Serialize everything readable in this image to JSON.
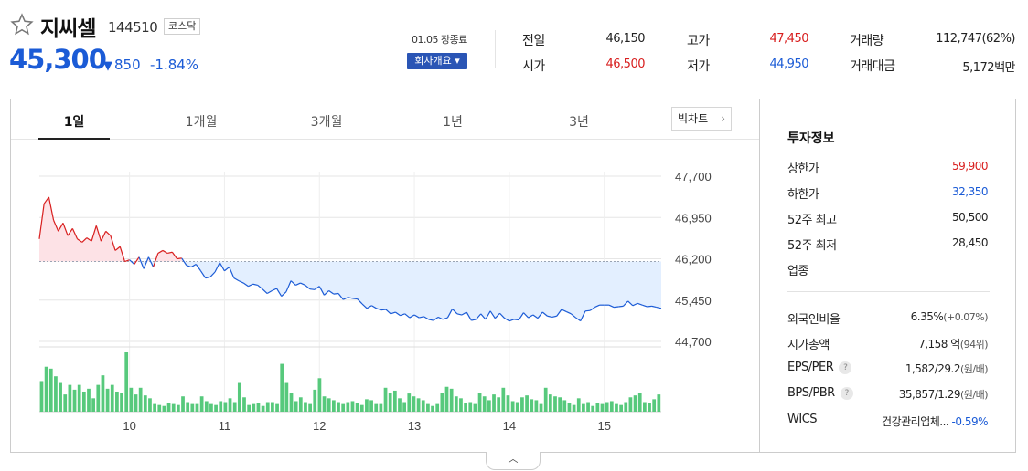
{
  "header": {
    "stock_name": "지씨셀",
    "stock_code": "144510",
    "market": "코스닥",
    "price": "45,300",
    "change": "850",
    "change_rate": "-1.84%",
    "close_date": "01.05 장종료",
    "company_button": "회사개요 ▾"
  },
  "quote": {
    "prev_close_label": "전일",
    "prev_close": "46,150",
    "open_label": "시가",
    "open": "46,500",
    "high_label": "고가",
    "high": "47,450",
    "low_label": "저가",
    "low": "44,950",
    "volume_label": "거래량",
    "volume": "112,747(62%)",
    "amount_label": "거래대금",
    "amount": "5,172백만"
  },
  "tabs": [
    "1일",
    "1개월",
    "3개월",
    "1년",
    "3년"
  ],
  "big_chart_label": "빅차트",
  "chart_data": {
    "type": "line",
    "title": "",
    "xlabel": "",
    "ylabel": "",
    "x_ticks": [
      "10",
      "11",
      "12",
      "13",
      "14",
      "15"
    ],
    "y_ticks": [
      47700,
      46950,
      46200,
      45450,
      44700
    ],
    "ylim": [
      44700,
      47700
    ],
    "baseline": 46150,
    "x_range": [
      9.05,
      15.6
    ],
    "series": [
      {
        "x": [
          9.05,
          9.1,
          9.15,
          9.2,
          9.25,
          9.3,
          9.35,
          9.4,
          9.45,
          9.5,
          9.55,
          9.6,
          9.65,
          9.7,
          9.75,
          9.8,
          9.85,
          9.9,
          9.95,
          10.0,
          10.05,
          10.1,
          10.15,
          10.2,
          10.25,
          10.3,
          10.35,
          10.4,
          10.45,
          10.5,
          10.55,
          10.6,
          10.65,
          10.7,
          10.75,
          10.8,
          10.85,
          10.9,
          10.95,
          11.0,
          11.05,
          11.1,
          11.15,
          11.2,
          11.25,
          11.3,
          11.35,
          11.4,
          11.45,
          11.5,
          11.55,
          11.6,
          11.65,
          11.7,
          11.75,
          11.8,
          11.85,
          11.9,
          11.95,
          12.0,
          12.05,
          12.1,
          12.15,
          12.2,
          12.25,
          12.3,
          12.35,
          12.4,
          12.45,
          12.5,
          12.55,
          12.6,
          12.65,
          12.7,
          12.75,
          12.8,
          12.85,
          12.9,
          12.95,
          13.0,
          13.05,
          13.1,
          13.15,
          13.2,
          13.25,
          13.3,
          13.35,
          13.4,
          13.45,
          13.5,
          13.55,
          13.6,
          13.65,
          13.7,
          13.75,
          13.8,
          13.85,
          13.9,
          13.95,
          14.0,
          14.05,
          14.1,
          14.15,
          14.2,
          14.25,
          14.3,
          14.35,
          14.4,
          14.45,
          14.5,
          14.55,
          14.6,
          14.65,
          14.7,
          14.75,
          14.8,
          14.85,
          14.9,
          14.95,
          15.0,
          15.05,
          15.1,
          15.15,
          15.2,
          15.25,
          15.3,
          15.35,
          15.4,
          15.45,
          15.5,
          15.55,
          15.6
        ],
        "y": [
          46560,
          47200,
          47320,
          46900,
          46700,
          46850,
          46620,
          46750,
          46560,
          46500,
          46580,
          46520,
          46800,
          46520,
          46700,
          46620,
          46350,
          46420,
          46150,
          46180,
          46100,
          46230,
          46020,
          46230,
          46050,
          46300,
          46350,
          46300,
          46320,
          46200,
          46210,
          46080,
          46050,
          46100,
          45980,
          45850,
          45870,
          45960,
          46130,
          45980,
          46050,
          45850,
          45800,
          45760,
          45700,
          45740,
          45720,
          45650,
          45570,
          45620,
          45660,
          45520,
          45600,
          45800,
          45720,
          45760,
          45720,
          45650,
          45640,
          45700,
          45540,
          45620,
          45560,
          45570,
          45460,
          45500,
          45480,
          45470,
          45380,
          45300,
          45350,
          45300,
          45270,
          45280,
          45200,
          45230,
          45170,
          45200,
          45130,
          45180,
          45130,
          45150,
          45100,
          45080,
          45140,
          45100,
          45130,
          45290,
          45200,
          45180,
          45230,
          45080,
          45100,
          45200,
          45100,
          45250,
          45120,
          45210,
          45120,
          45070,
          45100,
          45090,
          45220,
          45130,
          45180,
          45120,
          45230,
          45160,
          45140,
          45160,
          45280,
          45240,
          45200,
          45130,
          45070,
          45250,
          45260,
          45320,
          45360,
          45360,
          45360,
          45320,
          45330,
          45340,
          45430,
          45350,
          45390,
          45360,
          45330,
          45340,
          45320,
          45300
        ]
      }
    ],
    "volume": [
      32,
      47,
      45,
      37,
      30,
      18,
      28,
      23,
      28,
      21,
      24,
      14,
      28,
      38,
      24,
      28,
      21,
      20,
      62,
      25,
      18,
      25,
      17,
      14,
      8,
      7,
      6,
      9,
      8,
      7,
      16,
      10,
      8,
      8,
      16,
      11,
      8,
      7,
      11,
      10,
      14,
      10,
      30,
      15,
      7,
      8,
      9,
      6,
      10,
      10,
      8,
      50,
      30,
      20,
      11,
      15,
      10,
      8,
      23,
      35,
      16,
      14,
      12,
      10,
      8,
      10,
      11,
      9,
      7,
      13,
      12,
      8,
      8,
      25,
      20,
      22,
      14,
      10,
      19,
      16,
      14,
      12,
      8,
      6,
      8,
      20,
      26,
      24,
      16,
      14,
      9,
      10,
      8,
      20,
      16,
      12,
      18,
      15,
      25,
      17,
      11,
      10,
      15,
      17,
      13,
      12,
      8,
      25,
      18,
      16,
      15,
      12,
      9,
      7,
      14,
      8,
      10,
      6,
      9,
      8,
      10,
      11,
      8,
      7,
      10,
      15,
      17,
      20,
      10,
      9,
      13,
      18
    ]
  },
  "info": {
    "title": "투자정보",
    "upper_limit_label": "상한가",
    "upper_limit": "59,900",
    "lower_limit_label": "하한가",
    "lower_limit": "32,350",
    "high52_label": "52주 최고",
    "high52": "50,500",
    "low52_label": "52주 최저",
    "low52": "28,450",
    "sector_label": "업종",
    "foreign_label": "외국인비율",
    "foreign": "6.35%",
    "foreign_sub": "(+0.07%)",
    "mktcap_label": "시가총액",
    "mktcap": "7,158 억",
    "mktcap_sub": "(94위)",
    "eps_label": "EPS/PER",
    "eps": "1,582/29.2",
    "eps_sub": "(원/배)",
    "bps_label": "BPS/PBR",
    "bps": "35,857/1.29",
    "bps_sub": "(원/배)",
    "wics_label": "WICS",
    "wics": "건강관리업체...",
    "wics_rate": "-0.59%"
  },
  "colors": {
    "up": "#d81e1e",
    "down": "#1b5bd6",
    "volume": "#57c97c",
    "up_fill": "#fde2e6",
    "down_fill": "#e3efff"
  }
}
